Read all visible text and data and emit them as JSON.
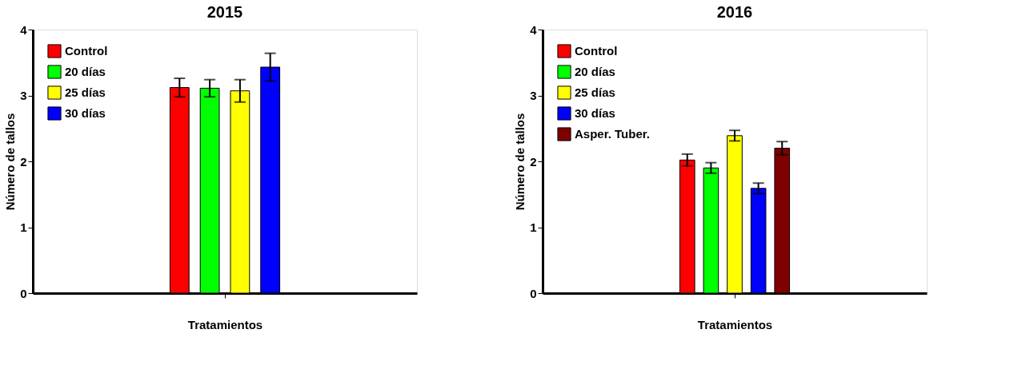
{
  "chart_data": [
    {
      "type": "bar",
      "title": "2015",
      "xlabel": "Tratamientos",
      "ylabel": "Número de tallos",
      "categories": [
        null
      ],
      "ylim": [
        0,
        4
      ],
      "yticks": [
        0,
        1,
        2,
        3,
        4
      ],
      "grid": false,
      "legend": "top left",
      "series": [
        {
          "name": "Control",
          "color": "#ff0000",
          "values": [
            3.12
          ],
          "errors": [
            0.14
          ]
        },
        {
          "name": "20 días",
          "color": "#00ff00",
          "values": [
            3.11
          ],
          "errors": [
            0.13
          ]
        },
        {
          "name": "25 días",
          "color": "#ffff00",
          "values": [
            3.07
          ],
          "errors": [
            0.17
          ]
        },
        {
          "name": "30 días",
          "color": "#0000ff",
          "values": [
            3.43
          ],
          "errors": [
            0.21
          ]
        }
      ]
    },
    {
      "type": "bar",
      "title": "2016",
      "xlabel": "Tratamientos",
      "ylabel": "Número de tallos",
      "categories": [
        null
      ],
      "ylim": [
        0,
        4
      ],
      "yticks": [
        0,
        1,
        2,
        3,
        4
      ],
      "grid": false,
      "legend": "top left",
      "series": [
        {
          "name": "Control",
          "color": "#ff0000",
          "values": [
            2.02
          ],
          "errors": [
            0.09
          ]
        },
        {
          "name": "20 días",
          "color": "#00ff00",
          "values": [
            1.9
          ],
          "errors": [
            0.08
          ]
        },
        {
          "name": "25 días",
          "color": "#ffff00",
          "values": [
            2.39
          ],
          "errors": [
            0.08
          ]
        },
        {
          "name": "30 días",
          "color": "#0000ff",
          "values": [
            1.59
          ],
          "errors": [
            0.08
          ]
        },
        {
          "name": "Asper. Tuber.",
          "color": "#800000",
          "values": [
            2.2
          ],
          "errors": [
            0.1
          ]
        }
      ]
    }
  ]
}
